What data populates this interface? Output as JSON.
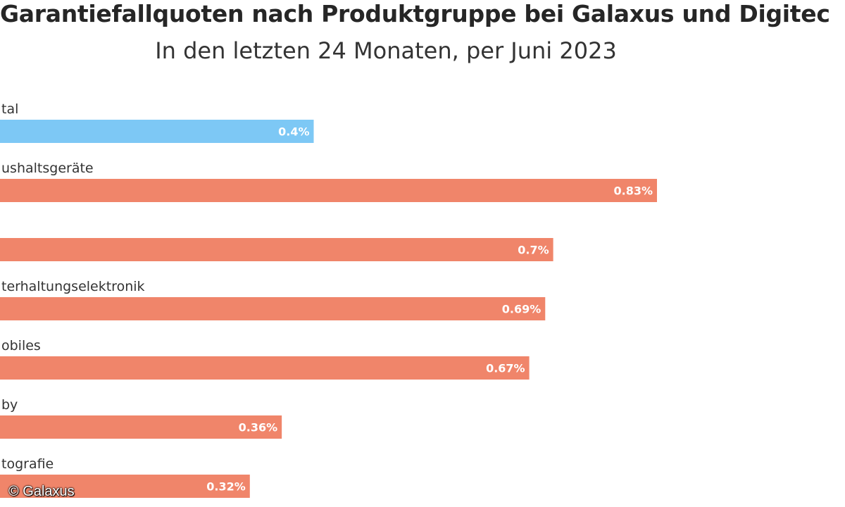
{
  "chart_data": {
    "type": "bar",
    "orientation": "horizontal",
    "title": "Garantiefallquoten nach Produktgruppe bei Galaxus und Digitec",
    "subtitle": "In den letzten 24 Monaten, per Juni 2023",
    "categories": [
      "tal",
      "ushaltsgeräte",
      "",
      "terhaltungselektronik",
      "obiles",
      "by",
      "tografie"
    ],
    "values": [
      0.4,
      0.83,
      0.7,
      0.69,
      0.67,
      0.36,
      0.32
    ],
    "value_labels": [
      "0.4%",
      "0.83%",
      "0.7%",
      "0.69%",
      "0.67%",
      "0.36%",
      "0.32%"
    ],
    "colors": [
      "#7dc8f5",
      "#f0856a",
      "#f0856a",
      "#f0856a",
      "#f0856a",
      "#f0856a",
      "#f0856a"
    ],
    "grid": false,
    "legend": "none"
  },
  "copyright": "© Galaxus"
}
